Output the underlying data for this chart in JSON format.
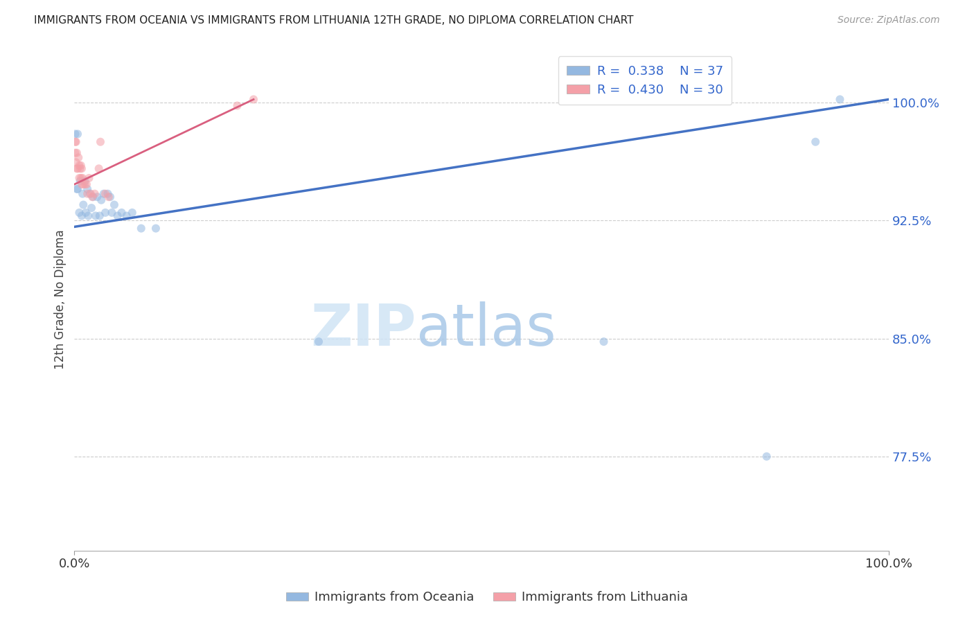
{
  "title": "IMMIGRANTS FROM OCEANIA VS IMMIGRANTS FROM LITHUANIA 12TH GRADE, NO DIPLOMA CORRELATION CHART",
  "source": "Source: ZipAtlas.com",
  "ylabel": "12th Grade, No Diploma",
  "y_tick_values": [
    0.775,
    0.85,
    0.925,
    1.0
  ],
  "y_tick_labels": [
    "77.5%",
    "85.0%",
    "92.5%",
    "100.0%"
  ],
  "x_lim": [
    0.0,
    1.0
  ],
  "y_lim": [
    0.715,
    1.035
  ],
  "R1": 0.338,
  "N1": 37,
  "R2": 0.43,
  "N2": 30,
  "blue_color": "#94B8E0",
  "pink_color": "#F4A0A8",
  "blue_line_color": "#4472C4",
  "pink_line_color": "#D95F7F",
  "dot_size": 75,
  "dot_alpha": 0.55,
  "blue_line_x0": 0.0,
  "blue_line_y0": 0.921,
  "blue_line_x1": 1.0,
  "blue_line_y1": 1.002,
  "pink_line_x0": 0.0,
  "pink_line_y0": 0.948,
  "pink_line_x1": 0.22,
  "pink_line_y1": 1.002,
  "blue_x": [
    0.001,
    0.003,
    0.004,
    0.004,
    0.006,
    0.007,
    0.009,
    0.01,
    0.011,
    0.013,
    0.014,
    0.016,
    0.017,
    0.019,
    0.021,
    0.023,
    0.026,
    0.028,
    0.031,
    0.033,
    0.036,
    0.038,
    0.041,
    0.044,
    0.046,
    0.049,
    0.053,
    0.058,
    0.064,
    0.071,
    0.082,
    0.1,
    0.3,
    0.65,
    0.85,
    0.91,
    0.94
  ],
  "blue_y": [
    0.98,
    0.945,
    0.945,
    0.98,
    0.93,
    0.95,
    0.928,
    0.942,
    0.935,
    0.95,
    0.93,
    0.945,
    0.928,
    0.942,
    0.933,
    0.94,
    0.928,
    0.94,
    0.928,
    0.938,
    0.942,
    0.93,
    0.942,
    0.94,
    0.93,
    0.935,
    0.928,
    0.93,
    0.928,
    0.93,
    0.92,
    0.92,
    0.848,
    0.848,
    0.775,
    0.975,
    1.002
  ],
  "pink_x": [
    0.001,
    0.001,
    0.002,
    0.002,
    0.003,
    0.003,
    0.004,
    0.005,
    0.006,
    0.006,
    0.007,
    0.008,
    0.008,
    0.009,
    0.009,
    0.01,
    0.011,
    0.013,
    0.015,
    0.016,
    0.018,
    0.02,
    0.022,
    0.025,
    0.03,
    0.032,
    0.038,
    0.042,
    0.2,
    0.22
  ],
  "pink_y": [
    0.975,
    0.968,
    0.975,
    0.962,
    0.968,
    0.958,
    0.958,
    0.965,
    0.96,
    0.952,
    0.958,
    0.96,
    0.952,
    0.958,
    0.948,
    0.952,
    0.948,
    0.948,
    0.948,
    0.942,
    0.952,
    0.942,
    0.94,
    0.942,
    0.958,
    0.975,
    0.942,
    0.94,
    0.998,
    1.002
  ],
  "watermark_zip": "ZIP",
  "watermark_atlas": "atlas",
  "background_color": "#FFFFFF",
  "grid_color": "#CCCCCC",
  "legend_blue_text": "R =  0.338    N = 37",
  "legend_pink_text": "R =  0.430    N = 30",
  "bottom_legend_blue": "Immigrants from Oceania",
  "bottom_legend_pink": "Immigrants from Lithuania",
  "title_fontsize": 11,
  "source_fontsize": 10,
  "tick_fontsize": 13,
  "legend_fontsize": 13
}
